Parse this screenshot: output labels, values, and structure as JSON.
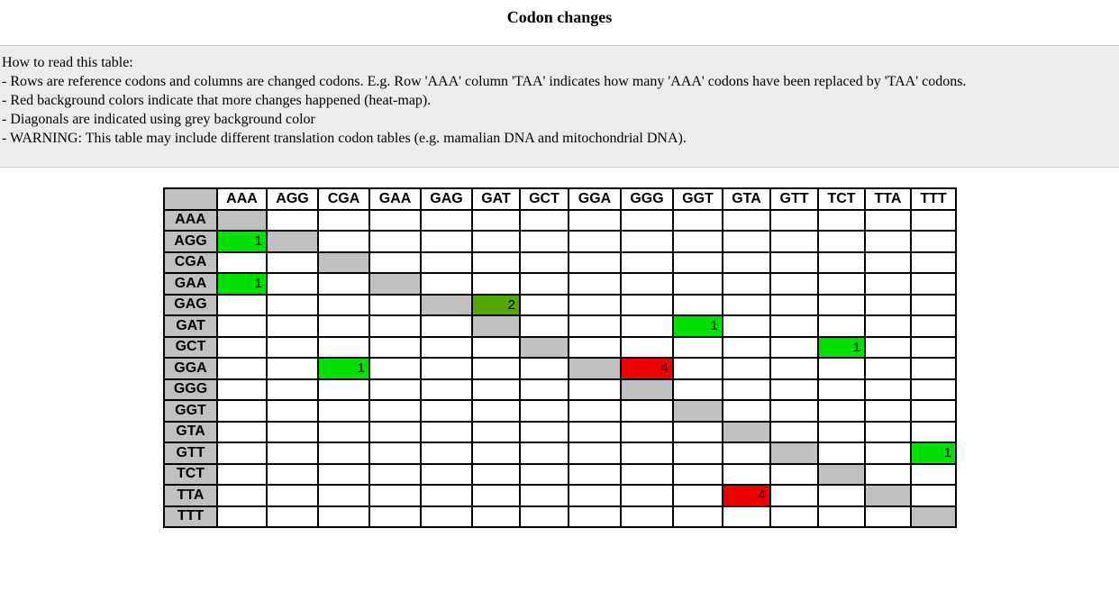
{
  "page": {
    "title": "Codon changes"
  },
  "info": {
    "lines": [
      "How to read this table:",
      "- Rows are reference codons and columns are changed codons. E.g. Row 'AAA' column 'TAA' indicates how many 'AAA' codons have been replaced by 'TAA' codons.",
      "- Red background colors indicate that more changes happened (heat-map).",
      "- Diagonals are indicated using grey background color",
      "- WARNING: This table may include different translation codon tables (e.g. mamalian DNA and mitochondrial DNA)."
    ]
  },
  "colors": {
    "diagonal": "#c0c0c0",
    "header": "#c0c0c0",
    "count_1": "#00e000",
    "count_2": "#55a800",
    "count_4": "#ee0000"
  },
  "table": {
    "columns": [
      "AAA",
      "AGG",
      "CGA",
      "GAA",
      "GAG",
      "GAT",
      "GCT",
      "GGA",
      "GGG",
      "GGT",
      "GTA",
      "GTT",
      "TCT",
      "TTA",
      "TTT"
    ],
    "rows": [
      {
        "codon": "AAA",
        "cells": [
          "",
          "",
          "",
          "",
          "",
          "",
          "",
          "",
          "",
          "",
          "",
          "",
          "",
          "",
          ""
        ],
        "diag": [
          0
        ]
      },
      {
        "codon": "AGG",
        "cells": [
          "1",
          "",
          "",
          "",
          "",
          "",
          "",
          "",
          "",
          "",
          "",
          "",
          "",
          "",
          ""
        ],
        "diag": [
          1
        ]
      },
      {
        "codon": "CGA",
        "cells": [
          "",
          "",
          "",
          "",
          "",
          "",
          "",
          "",
          "",
          "",
          "",
          "",
          "",
          "",
          ""
        ],
        "diag": [
          2
        ]
      },
      {
        "codon": "GAA",
        "cells": [
          "1",
          "",
          "",
          "",
          "",
          "",
          "",
          "",
          "",
          "",
          "",
          "",
          "",
          "",
          ""
        ],
        "diag": [
          3
        ]
      },
      {
        "codon": "GAG",
        "cells": [
          "",
          "",
          "",
          "",
          "",
          "2",
          "",
          "",
          "",
          "",
          "",
          "",
          "",
          "",
          ""
        ],
        "diag": [
          4
        ]
      },
      {
        "codon": "GAT",
        "cells": [
          "",
          "",
          "",
          "",
          "",
          "",
          "",
          "",
          "",
          "1",
          "",
          "",
          "",
          "",
          ""
        ],
        "diag": [
          5
        ]
      },
      {
        "codon": "GCT",
        "cells": [
          "",
          "",
          "",
          "",
          "",
          "",
          "",
          "",
          "",
          "",
          "",
          "",
          "1",
          "",
          ""
        ],
        "diag": [
          6
        ]
      },
      {
        "codon": "GGA",
        "cells": [
          "",
          "",
          "1",
          "",
          "",
          "",
          "",
          "",
          "4",
          "",
          "",
          "",
          "",
          "",
          ""
        ],
        "diag": [
          7
        ]
      },
      {
        "codon": "GGG",
        "cells": [
          "",
          "",
          "",
          "",
          "",
          "",
          "",
          "",
          "",
          "",
          "",
          "",
          "",
          "",
          ""
        ],
        "diag": [
          8
        ]
      },
      {
        "codon": "GGT",
        "cells": [
          "",
          "",
          "",
          "",
          "",
          "",
          "",
          "",
          "",
          "",
          "",
          "",
          "",
          "",
          ""
        ],
        "diag": [
          9
        ]
      },
      {
        "codon": "GTA",
        "cells": [
          "",
          "",
          "",
          "",
          "",
          "",
          "",
          "",
          "",
          "",
          "",
          "",
          "",
          "",
          ""
        ],
        "diag": [
          10
        ]
      },
      {
        "codon": "GTT",
        "cells": [
          "",
          "",
          "",
          "",
          "",
          "",
          "",
          "",
          "",
          "",
          "",
          "",
          "",
          "",
          "1"
        ],
        "diag": [
          11
        ]
      },
      {
        "codon": "TCT",
        "cells": [
          "",
          "",
          "",
          "",
          "",
          "",
          "",
          "",
          "",
          "",
          "",
          "",
          "",
          "",
          ""
        ],
        "diag": [
          12
        ]
      },
      {
        "codon": "TTA",
        "cells": [
          "",
          "",
          "",
          "",
          "",
          "",
          "",
          "",
          "",
          "",
          "4",
          "",
          "",
          "",
          ""
        ],
        "diag": [
          13
        ]
      },
      {
        "codon": "TTT",
        "cells": [
          "",
          "",
          "",
          "",
          "",
          "",
          "",
          "",
          "",
          "",
          "",
          "",
          "",
          "",
          ""
        ],
        "diag": [
          14
        ]
      }
    ]
  }
}
